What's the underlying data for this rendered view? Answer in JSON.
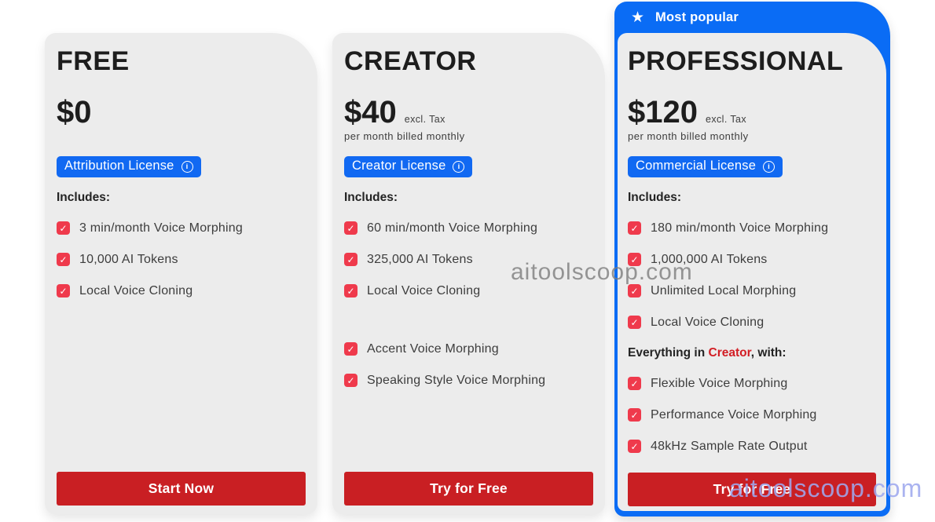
{
  "colors": {
    "blue": "#0a6cf5",
    "badge_blue": "#1169f2",
    "check_red": "#ef3a4c",
    "button_red": "#c91f23",
    "accent_red": "#d21d24",
    "card_bg": "#ececec"
  },
  "icons": {
    "star": "★",
    "check": "✓",
    "info": "i"
  },
  "banner": {
    "label": "Most popular"
  },
  "watermarks": {
    "center": "aitoolscoop.com",
    "bottom": "aitoolscoop.com"
  },
  "plans": [
    {
      "name": "FREE",
      "price": "$0",
      "license": "Attribution License",
      "includes_label": "Includes:",
      "features": [
        "3 min/month Voice Morphing",
        "10,000 AI Tokens",
        "Local Voice Cloning"
      ],
      "cta": "Start Now"
    },
    {
      "name": "CREATOR",
      "price": "$40",
      "tax_note": "excl. Tax",
      "billing_note": "per month billed monthly",
      "license": "Creator License",
      "includes_label": "Includes:",
      "features": [
        "60 min/month Voice Morphing",
        "325,000 AI Tokens",
        "Local Voice Cloning"
      ],
      "features_extra": [
        "Accent Voice Morphing",
        "Speaking Style Voice Morphing"
      ],
      "cta": "Try for Free"
    },
    {
      "name": "PROFESSIONAL",
      "price": "$120",
      "tax_note": "excl. Tax",
      "billing_note": "per month billed monthly",
      "license": "Commercial License",
      "includes_label": "Includes:",
      "features": [
        "180 min/month Voice Morphing",
        "1,000,000 AI Tokens",
        "Unlimited Local Morphing",
        "Local Voice Cloning"
      ],
      "everything_prefix": "Everything in ",
      "everything_highlight": "Creator",
      "everything_suffix": ", with:",
      "features_extra": [
        "Flexible Voice Morphing",
        "Performance Voice Morphing",
        "48kHz Sample Rate Output"
      ],
      "cta": "Try for Free"
    }
  ]
}
